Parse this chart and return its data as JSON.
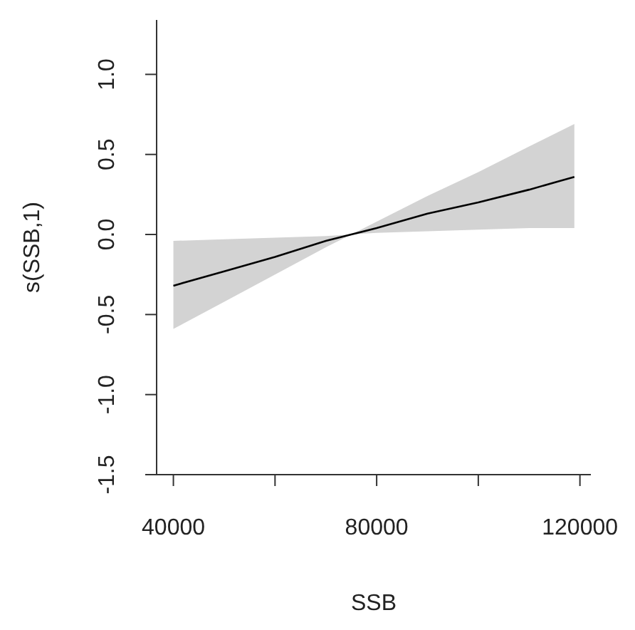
{
  "chart_data": {
    "type": "line",
    "xlabel": "SSB",
    "ylabel": "s(SSB,1)",
    "x": [
      40000,
      50000,
      60000,
      70000,
      75000,
      80000,
      90000,
      100000,
      110000,
      118900
    ],
    "series": [
      {
        "color": "#000000",
        "values": [
          -0.32,
          -0.23,
          -0.14,
          -0.04,
          0.0,
          0.04,
          0.13,
          0.2,
          0.28,
          0.36
        ],
        "lower": [
          -0.59,
          -0.42,
          -0.25,
          -0.08,
          0.0,
          0.01,
          0.02,
          0.03,
          0.04,
          0.04
        ],
        "upper": [
          -0.04,
          -0.03,
          -0.02,
          -0.01,
          0.0,
          0.08,
          0.24,
          0.39,
          0.55,
          0.69
        ]
      }
    ],
    "xlim": [
      36700,
      122150
    ],
    "ylim": [
      -1.5,
      1.34
    ],
    "xticks": [
      40000,
      {
        "value": 60000,
        "label": null
      },
      80000,
      {
        "value": 100000,
        "label": null
      },
      120000
    ],
    "yticks": [
      {
        "value": -1.5,
        "label": "-1.5"
      },
      {
        "value": -1.0,
        "label": "-1.0"
      },
      {
        "value": -0.5,
        "label": "-0.5"
      },
      {
        "value": 0,
        "label": "0.0"
      },
      {
        "value": 0.5,
        "label": "0.5"
      },
      {
        "value": 1.0,
        "label": "1.0"
      }
    ],
    "grid": false,
    "legend": false,
    "marker": "none",
    "line_style": "solid"
  }
}
